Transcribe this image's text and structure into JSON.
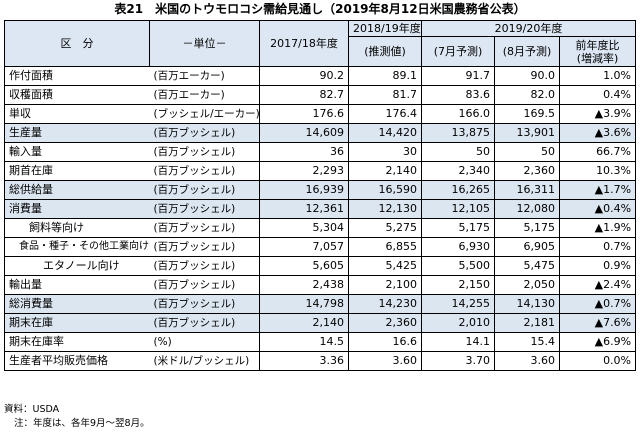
{
  "title": "表21　米国のトウモロコシ需給見通し（2019年8月12日米国農務省公表）",
  "header": {
    "kubun": "区　分",
    "unit_label": "－単位－",
    "col_2017": "2017/18年度",
    "col_2018": "2018/19年度",
    "col_2019": "2019/20年度",
    "sub_2018": "(推測値)",
    "sub_jul": "(7月予測)",
    "sub_aug": "(8月予測)",
    "change_line1": "前年度比",
    "change_line2": "(増減率)"
  },
  "rows": [
    {
      "label": "作付面積",
      "unit": "(百万エーカー)",
      "v2017": "90.2",
      "v2018": "89.1",
      "jul": "91.7",
      "aug": "90.0",
      "change": "1.0%"
    },
    {
      "label": "収穫面積",
      "unit": "(百万エーカー)",
      "v2017": "82.7",
      "v2018": "81.7",
      "jul": "83.6",
      "aug": "82.0",
      "change": "0.4%"
    },
    {
      "label": "単収",
      "unit": "(ブッシェル/エーカー)",
      "v2017": "176.6",
      "v2018": "176.4",
      "jul": "166.0",
      "aug": "169.5",
      "change": "▲3.9%"
    },
    {
      "label": "生産量",
      "unit": "(百万ブッシェル)",
      "v2017": "14,609",
      "v2018": "14,420",
      "jul": "13,875",
      "aug": "13,901",
      "change": "▲3.6%"
    },
    {
      "label": "輸入量",
      "unit": "(百万ブッシェル)",
      "v2017": "36",
      "v2018": "30",
      "jul": "50",
      "aug": "50",
      "change": "66.7%"
    },
    {
      "label": "期首在庫",
      "unit": "(百万ブッシェル)",
      "v2017": "2,293",
      "v2018": "2,140",
      "jul": "2,340",
      "aug": "2,360",
      "change": "10.3%"
    },
    {
      "label": "総供給量",
      "unit": "(百万ブッシェル)",
      "v2017": "16,939",
      "v2018": "16,590",
      "jul": "16,265",
      "aug": "16,311",
      "change": "▲1.7%"
    },
    {
      "label": "消費量",
      "unit": "(百万ブッシェル)",
      "v2017": "12,361",
      "v2018": "12,130",
      "jul": "12,105",
      "aug": "12,080",
      "change": "▲0.4%"
    },
    {
      "label": "飼料等向け",
      "unit": "(百万ブッシェル)",
      "v2017": "5,304",
      "v2018": "5,275",
      "jul": "5,175",
      "aug": "5,175",
      "change": "▲1.9%"
    },
    {
      "label": "食品・種子・その他工業向け",
      "unit": "(百万ブッシェル)",
      "v2017": "7,057",
      "v2018": "6,855",
      "jul": "6,930",
      "aug": "6,905",
      "change": "0.7%"
    },
    {
      "label": "エタノール向け",
      "unit": "(百万ブッシェル)",
      "v2017": "5,605",
      "v2018": "5,425",
      "jul": "5,500",
      "aug": "5,475",
      "change": "0.9%"
    },
    {
      "label": "輸出量",
      "unit": "(百万ブッシェル)",
      "v2017": "2,438",
      "v2018": "2,100",
      "jul": "2,150",
      "aug": "2,050",
      "change": "▲2.4%"
    },
    {
      "label": "総消費量",
      "unit": "(百万ブッシェル)",
      "v2017": "14,798",
      "v2018": "14,230",
      "jul": "14,255",
      "aug": "14,130",
      "change": "▲0.7%"
    },
    {
      "label": "期末在庫",
      "unit": "(百万ブッシェル)",
      "v2017": "2,140",
      "v2018": "2,360",
      "jul": "2,010",
      "aug": "2,181",
      "change": "▲7.6%"
    },
    {
      "label": "期末在庫率",
      "unit": "(%)",
      "v2017": "14.5",
      "v2018": "16.6",
      "jul": "14.1",
      "aug": "15.4",
      "change": "▲6.9%"
    },
    {
      "label": "生産者平均販売価格",
      "unit": "(米ドル/ブッシェル)",
      "v2017": "3.36",
      "v2018": "3.60",
      "jul": "3.70",
      "aug": "3.60",
      "change": "0.0%"
    }
  ],
  "notes": {
    "source": "資料：USDA",
    "note": "注：年度は、各年9月～翌8月。"
  },
  "colors": {
    "header_bg": "#dde7f3",
    "band_bg": "#dce6f1"
  }
}
